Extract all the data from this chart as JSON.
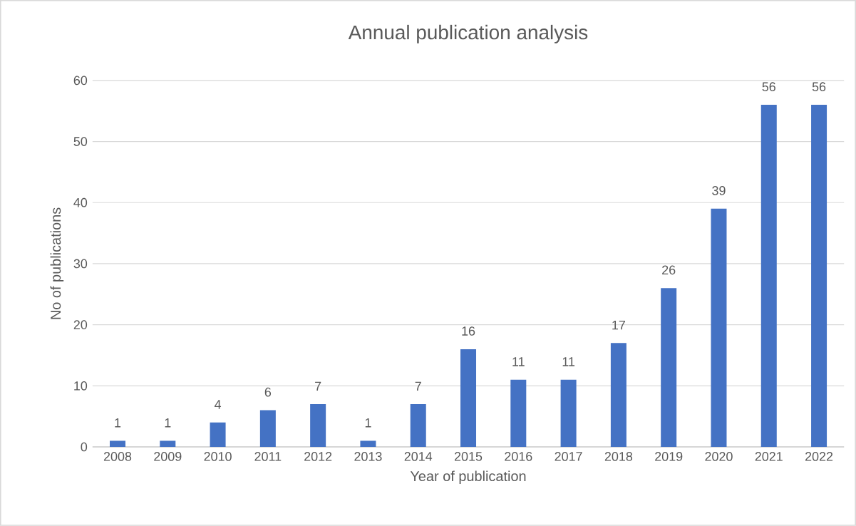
{
  "chart_data": {
    "type": "bar",
    "title": "Annual publication analysis",
    "xlabel": "Year of publication",
    "ylabel": "No of publications",
    "categories": [
      "2008",
      "2009",
      "2010",
      "2011",
      "2012",
      "2013",
      "2014",
      "2015",
      "2016",
      "2017",
      "2018",
      "2019",
      "2020",
      "2021",
      "2022"
    ],
    "values": [
      1,
      1,
      4,
      6,
      7,
      1,
      7,
      16,
      11,
      11,
      17,
      26,
      39,
      56,
      56
    ],
    "color": "#4472c4",
    "ylim": [
      0,
      60
    ],
    "yticks": [
      0,
      10,
      20,
      30,
      40,
      50,
      60
    ],
    "grid": "y",
    "data_labels": true
  }
}
